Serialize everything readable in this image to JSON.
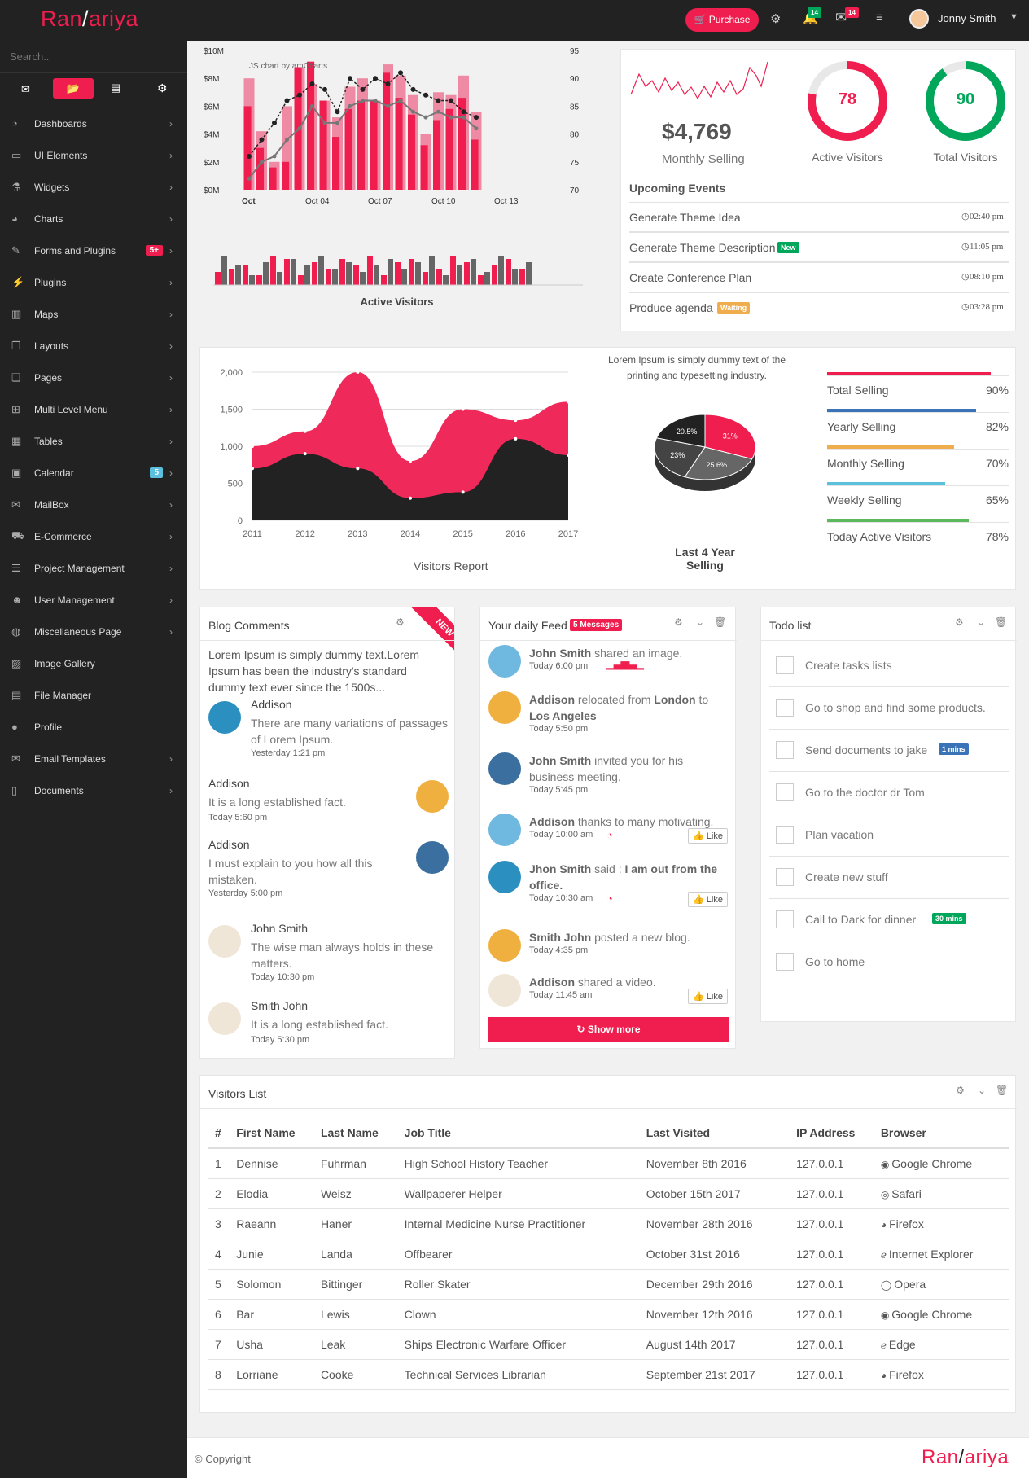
{
  "app": {
    "logo_left": "Ran",
    "logo_right": "ariya",
    "purchase": "Purchase",
    "user": "Jonny Smith",
    "notif_count": "14",
    "mail_count": "14"
  },
  "colors": {
    "accent": "#ef1e4f",
    "green": "#00a65a",
    "blue": "#3b73b9",
    "orange": "#f0ad4e",
    "teal": "#5bc0de"
  },
  "sidebar": {
    "search_placeholder": "Search..",
    "items": [
      {
        "label": "Dashboards",
        "icon": "dashboard-icon"
      },
      {
        "label": "UI Elements",
        "icon": "laptop-icon"
      },
      {
        "label": "Widgets",
        "icon": "flask-icon"
      },
      {
        "label": "Charts",
        "icon": "pie-icon"
      },
      {
        "label": "Forms and Plugins",
        "icon": "edit-icon",
        "badge": "5+"
      },
      {
        "label": "Plugins",
        "icon": "plug-icon"
      },
      {
        "label": "Maps",
        "icon": "map-icon"
      },
      {
        "label": "Layouts",
        "icon": "clone-icon"
      },
      {
        "label": "Pages",
        "icon": "copy-icon"
      },
      {
        "label": "Multi Level Menu",
        "icon": "sitemap-icon"
      },
      {
        "label": "Tables",
        "icon": "table-icon"
      },
      {
        "label": "Calendar",
        "icon": "calendar-icon",
        "badge": "5"
      },
      {
        "label": "MailBox",
        "icon": "envelope-icon"
      },
      {
        "label": "E-Commerce",
        "icon": "cart-icon"
      },
      {
        "label": "Project Management",
        "icon": "tasks-icon"
      },
      {
        "label": "User Management",
        "icon": "users-icon"
      },
      {
        "label": "Miscellaneous Page",
        "icon": "globe-icon"
      },
      {
        "label": "Image Gallery",
        "icon": "image-icon"
      },
      {
        "label": "File Manager",
        "icon": "file-icon"
      },
      {
        "label": "Profile",
        "icon": "user-icon"
      },
      {
        "label": "Email Templates",
        "icon": "envelope-icon"
      },
      {
        "label": "Documents",
        "icon": "book-icon"
      }
    ]
  },
  "combo_chart": {
    "credit": "JS chart by amCharts",
    "title": "Active Visitors",
    "y_left": [
      "$10M",
      "$8M",
      "$6M",
      "$4M",
      "$2M",
      "$0M"
    ],
    "y_right": [
      "95",
      "90",
      "85",
      "80",
      "75",
      "70"
    ],
    "x_ticks": [
      "Oct",
      "Oct 04",
      "Oct 07",
      "Oct 10",
      "Oct 13"
    ]
  },
  "stats": {
    "amount": "$4,769",
    "amount_label": "Monthly Selling",
    "active": "78",
    "active_label": "Active Visitors",
    "total": "90",
    "total_label": "Total Visitors"
  },
  "events": {
    "title": "Upcoming Events",
    "items": [
      {
        "text": "Generate Theme Idea",
        "time": "02:40 pm",
        "tag": ""
      },
      {
        "text": "Generate Theme Description",
        "time": "11:05 pm",
        "tag": "New"
      },
      {
        "text": "Create Conference Plan",
        "time": "08:10 pm",
        "tag": ""
      },
      {
        "text": "Produce agenda",
        "time": "03:28 pm",
        "tag": "Waiting"
      }
    ]
  },
  "chart_data": [
    {
      "type": "area",
      "title": "Visitors Report",
      "x": [
        "2011",
        "2012",
        "2013",
        "2014",
        "2015",
        "2016",
        "2017"
      ],
      "yticks": [
        "2,000",
        "1,500",
        "1,000",
        "500",
        "0"
      ],
      "ylim": [
        0,
        2000
      ],
      "series": [
        {
          "values": [
            1000,
            1200,
            2000,
            800,
            1500,
            1350,
            1600
          ]
        },
        {
          "values": [
            700,
            900,
            700,
            300,
            380,
            1100,
            880
          ]
        }
      ]
    },
    {
      "type": "pie",
      "title": "Last 4 Year Selling",
      "labels": [
        "31%",
        "25.6%",
        "23%",
        "20.5%"
      ],
      "values": [
        31,
        25.6,
        23,
        20.5
      ]
    }
  ],
  "pie_caption": "Lorem Ipsum is simply dummy text of the printing and typesetting industry.",
  "progress": [
    {
      "label": "Total Selling",
      "pct": "90%",
      "value": 90,
      "color": "#ef1e4f"
    },
    {
      "label": "Yearly Selling",
      "pct": "82%",
      "value": 82,
      "color": "#3b73b9"
    },
    {
      "label": "Monthly Selling",
      "pct": "70%",
      "value": 70,
      "color": "#f0ad4e"
    },
    {
      "label": "Weekly Selling",
      "pct": "65%",
      "value": 65,
      "color": "#5bc0de"
    },
    {
      "label": "Today Active Visitors",
      "pct": "78%",
      "value": 78,
      "color": "#5cb85c"
    }
  ],
  "blog": {
    "title": "Blog Comments",
    "ribbon": "NEW",
    "intro": "Lorem Ipsum is simply dummy text.Lorem Ipsum has been the industry's standard dummy text ever since the 1500s...",
    "comments": [
      {
        "name": "Addison",
        "text": "There are many variations of passages of Lorem Ipsum.",
        "time": "Yesterday 1:21 pm"
      },
      {
        "name": "Addison",
        "text": "It is a long established fact.",
        "time": "Today 5:60 pm"
      },
      {
        "name": "Addison",
        "text": "I must explain to you how all this mistaken.",
        "time": "Yesterday 5:00 pm"
      },
      {
        "name": "John Smith",
        "text": "The wise man always holds in these matters.",
        "time": "Today 10:30 pm"
      },
      {
        "name": "Smith John",
        "text": "It is a long established fact.",
        "time": "Today 5:30 pm"
      }
    ]
  },
  "feed": {
    "title": "Your daily Feed",
    "badge": "5 Messages",
    "show_more": "Show more",
    "like": "Like",
    "items": [
      {
        "name": "John Smith",
        "action": "shared an image.",
        "time": "Today 6:00 pm"
      },
      {
        "name": "Addison",
        "action": "relocated from",
        "extra1": "London",
        "to": "to",
        "extra2": "Los Angeles",
        "time": "Today 5:50 pm"
      },
      {
        "name": "John Smith",
        "action": "invited you for his business meeting.",
        "time": "Today 5:45 pm"
      },
      {
        "name": "Addison",
        "action": "thanks to many motivating.",
        "time": "Today 10:00 am"
      },
      {
        "name": "Jhon Smith",
        "action": "said :",
        "quote": "I am out from the office.",
        "time": "Today 10:30 am"
      },
      {
        "name": "Smith John",
        "action": "posted a new blog.",
        "time": "Today 4:35 pm"
      },
      {
        "name": "Addison",
        "action": "shared a video.",
        "time": "Today 11:45 am"
      }
    ]
  },
  "todo": {
    "title": "Todo list",
    "items": [
      {
        "text": "Create tasks lists",
        "tag": ""
      },
      {
        "text": "Go to shop and find some products.",
        "tag": ""
      },
      {
        "text": "Send documents to jake",
        "tag": "1 mins"
      },
      {
        "text": "Go to the doctor dr Tom",
        "tag": ""
      },
      {
        "text": "Plan vacation",
        "tag": ""
      },
      {
        "text": "Create new stuff",
        "tag": ""
      },
      {
        "text": "Call to Dark for dinner",
        "tag": "30 mins"
      },
      {
        "text": "Go to home",
        "tag": ""
      }
    ]
  },
  "visitors": {
    "title": "Visitors List",
    "headers": [
      "#",
      "First Name",
      "Last Name",
      "Job Title",
      "Last Visited",
      "IP Address",
      "Browser"
    ],
    "rows": [
      [
        "1",
        "Dennise",
        "Fuhrman",
        "High School History Teacher",
        "November 8th 2016",
        "127.0.0.1",
        "Google Chrome"
      ],
      [
        "2",
        "Elodia",
        "Weisz",
        "Wallpaperer Helper",
        "October 15th 2017",
        "127.0.0.1",
        "Safari"
      ],
      [
        "3",
        "Raeann",
        "Haner",
        "Internal Medicine Nurse Practitioner",
        "November 28th 2016",
        "127.0.0.1",
        "Firefox"
      ],
      [
        "4",
        "Junie",
        "Landa",
        "Offbearer",
        "October 31st 2016",
        "127.0.0.1",
        "Internet Explorer"
      ],
      [
        "5",
        "Solomon",
        "Bittinger",
        "Roller Skater",
        "December 29th 2016",
        "127.0.0.1",
        "Opera"
      ],
      [
        "6",
        "Bar",
        "Lewis",
        "Clown",
        "November 12th 2016",
        "127.0.0.1",
        "Google Chrome"
      ],
      [
        "7",
        "Usha",
        "Leak",
        "Ships Electronic Warfare Officer",
        "August 14th 2017",
        "127.0.0.1",
        "Edge"
      ],
      [
        "8",
        "Lorriane",
        "Cooke",
        "Technical Services Librarian",
        "September 21st 2017",
        "127.0.0.1",
        "Firefox"
      ]
    ]
  },
  "footer": {
    "copyright": "© Copyright"
  }
}
